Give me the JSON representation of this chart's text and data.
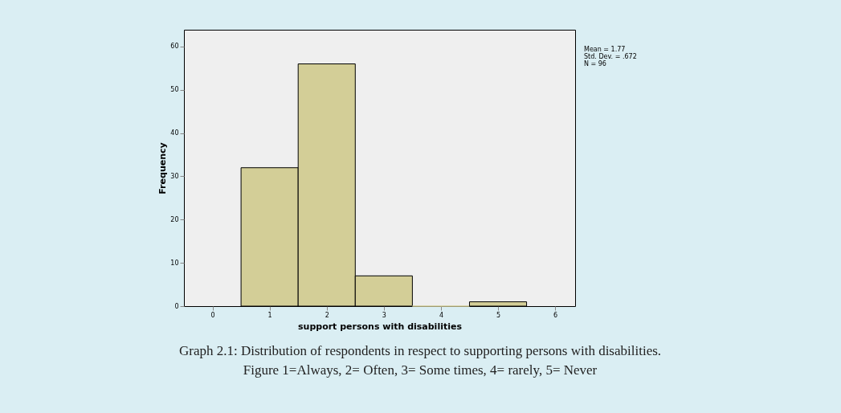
{
  "chart_data": {
    "type": "histogram",
    "xlabel": "support persons with disabilities",
    "ylabel": "Frequency",
    "bins": [
      0.5,
      1.5,
      2.5,
      3.5,
      4.5,
      5.5
    ],
    "values": [
      32,
      56,
      7,
      0,
      1
    ],
    "color": "#d3ce97",
    "xlim": [
      -0.5,
      6.35
    ],
    "xticks": [
      0,
      1,
      2,
      3,
      4,
      5,
      6
    ],
    "ylim": [
      0,
      63.9
    ],
    "yticks": [
      0,
      10,
      20,
      30,
      40,
      50,
      60
    ],
    "grid": false,
    "annotations": [
      "Mean = 1.77",
      "Std. Dev. = .672",
      "N = 96",
      "Graph 2.1: Distribution of respondents in respect to supporting persons with disabilities.",
      "Figure 1=Always, 2= Often, 3= Some times, 4= rarely, 5= Never"
    ]
  }
}
